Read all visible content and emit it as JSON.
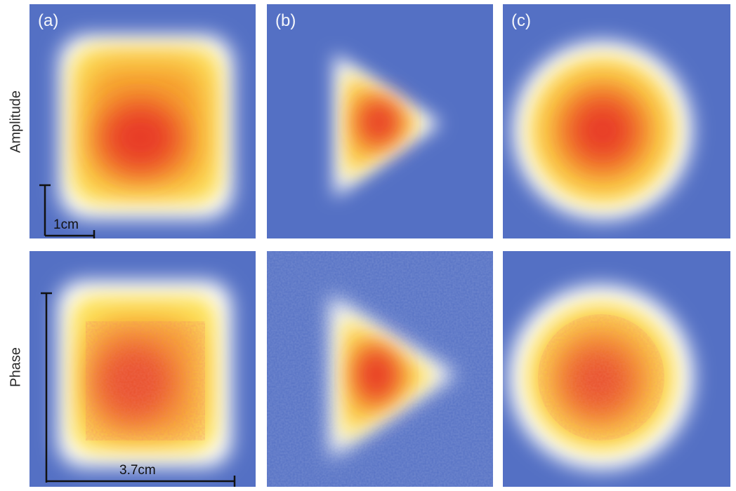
{
  "row_labels": [
    "Amplitude",
    "Phase"
  ],
  "panel_labels": [
    "(a)",
    "(b)",
    "(c)"
  ],
  "shapes": [
    "square",
    "triangle",
    "circle"
  ],
  "colormap": [
    "#5470c4",
    "#ffffff",
    "#fde35a",
    "#f6a12e",
    "#e83a26"
  ],
  "scale_bars": {
    "small": "1cm",
    "large": "3.7cm"
  }
}
